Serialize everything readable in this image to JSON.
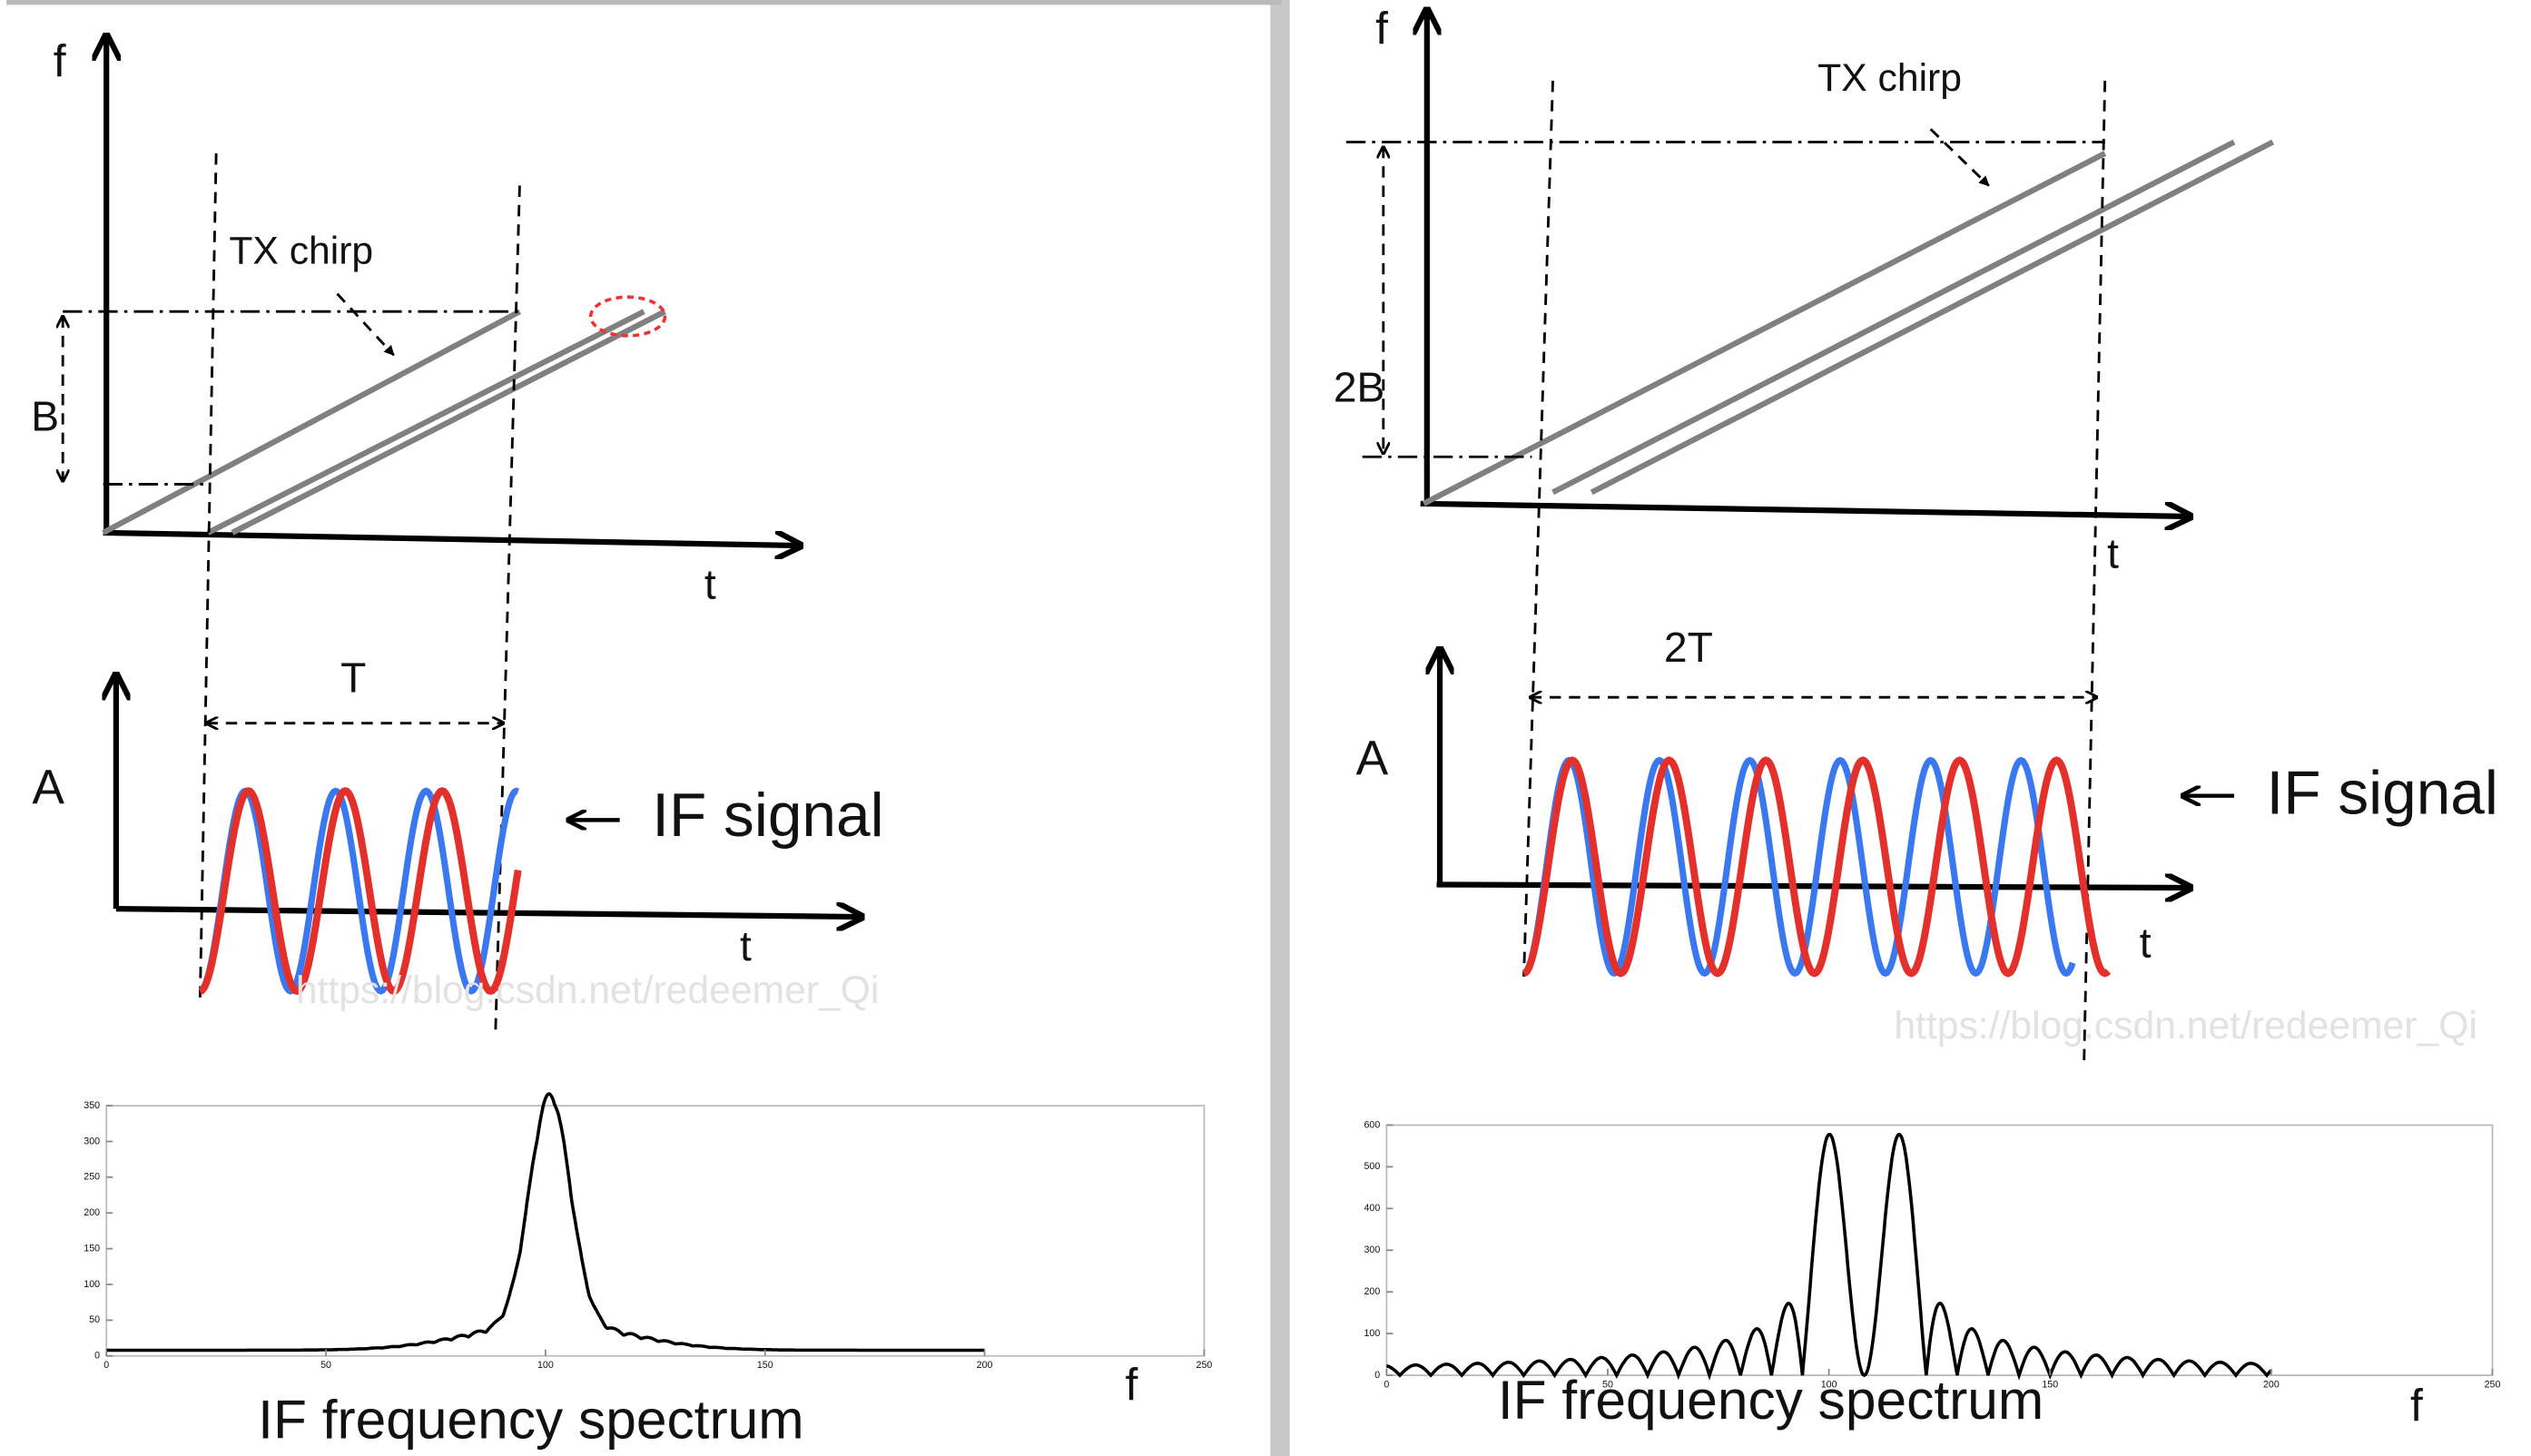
{
  "left": {
    "f_axis": "f",
    "t_axis": "t",
    "tx_label": "TX chirp",
    "bandwidth": "B",
    "period": "T",
    "amplitude": "A",
    "if_label": "IF signal",
    "if_t_axis": "t",
    "watermark": "https://blog.csdn.net/redeemer_Qi",
    "spectrum": {
      "xticks": [
        0,
        50,
        100,
        150,
        200,
        250
      ],
      "yticks": [
        0,
        50,
        100,
        150,
        200,
        250,
        300,
        350
      ],
      "x_label": "f",
      "caption": "IF frequency spectrum"
    }
  },
  "right": {
    "f_axis": "f",
    "t_axis": "t",
    "tx_label": "TX chirp",
    "bandwidth": "2B",
    "period": "2T",
    "amplitude": "A",
    "if_label": "IF signal",
    "if_t_axis": "t",
    "watermark": "https://blog.csdn.net/redeemer_Qi",
    "spectrum": {
      "xticks": [
        0,
        50,
        100,
        150,
        200,
        250
      ],
      "yticks": [
        0,
        100,
        200,
        300,
        400,
        500,
        600
      ],
      "x_label": "f",
      "caption": "IF frequency spectrum"
    }
  }
}
